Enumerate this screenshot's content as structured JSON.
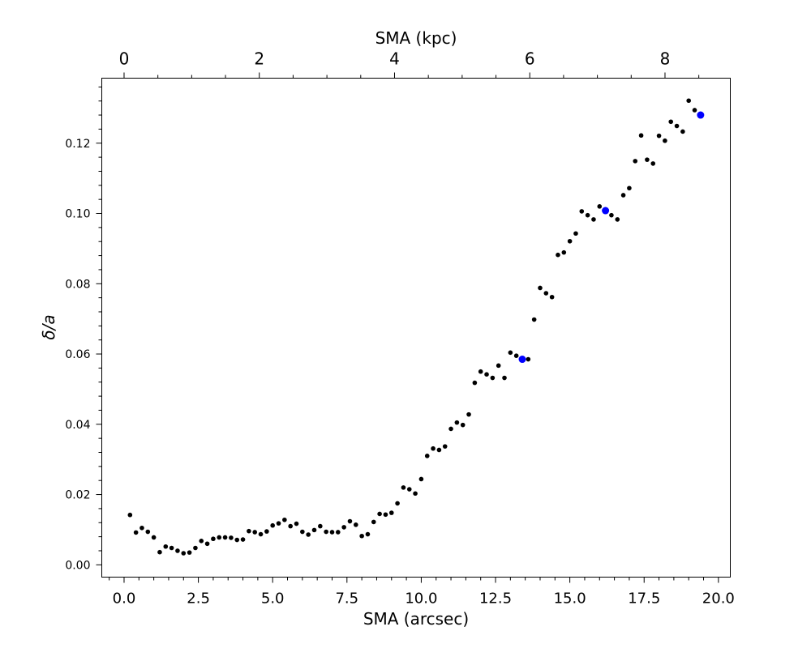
{
  "chart_data": {
    "type": "scatter",
    "title": "",
    "xlabel": "SMA (arcsec)",
    "ylabel": "δ/a",
    "x2label": "SMA (kpc)",
    "xlim": [
      -0.75,
      20.4
    ],
    "ylim": [
      -0.0035,
      0.1385
    ],
    "x2_per_x": 0.4395,
    "xticks": [
      0.0,
      2.5,
      5.0,
      7.5,
      10.0,
      12.5,
      15.0,
      17.5,
      20.0
    ],
    "xtick_labels": [
      "0.0",
      "2.5",
      "5.0",
      "7.5",
      "10.0",
      "12.5",
      "15.0",
      "17.5",
      "20.0"
    ],
    "yticks": [
      0.0,
      0.02,
      0.04,
      0.06,
      0.08,
      0.1,
      0.12
    ],
    "ytick_labels": [
      "0.00",
      "0.02",
      "0.04",
      "0.06",
      "0.08",
      "0.10",
      "0.12"
    ],
    "x2ticks": [
      0,
      2,
      4,
      6,
      8
    ],
    "x2tick_labels": [
      "0",
      "2",
      "4",
      "6",
      "8"
    ],
    "grid": false,
    "colors": {
      "points": "#000000",
      "highlight": "#0000ff",
      "axes": "#000000",
      "background": "#ffffff"
    },
    "series": [
      {
        "color": "#000000",
        "x": [
          0.2,
          0.4,
          0.6,
          0.8,
          1.0,
          1.2,
          1.4,
          1.6,
          1.8,
          2.0,
          2.2,
          2.4,
          2.6,
          2.8,
          3.0,
          3.2,
          3.4,
          3.6,
          3.8,
          4.0,
          4.2,
          4.4,
          4.6,
          4.8,
          5.0,
          5.2,
          5.4,
          5.6,
          5.8,
          6.0,
          6.2,
          6.4,
          6.6,
          6.8,
          7.0,
          7.2,
          7.4,
          7.6,
          7.8,
          8.0,
          8.2,
          8.4,
          8.6,
          8.8,
          9.0,
          9.2,
          9.4,
          9.6,
          9.8,
          10.0,
          10.2,
          10.4,
          10.6,
          10.8,
          11.0,
          11.2,
          11.4,
          11.6,
          11.8,
          12.0,
          12.2,
          12.4,
          12.6,
          12.8,
          13.0,
          13.2,
          13.6,
          13.8,
          14.0,
          14.2,
          14.4,
          14.6,
          14.8,
          15.0,
          15.2,
          15.4,
          15.6,
          15.8,
          16.0,
          16.4,
          16.6,
          16.8,
          17.0,
          17.2,
          17.4,
          17.6,
          17.8,
          18.0,
          18.2,
          18.4,
          18.6,
          18.8,
          19.0,
          19.2
        ],
        "y": [
          0.0142,
          0.0092,
          0.0105,
          0.0094,
          0.0078,
          0.0036,
          0.0052,
          0.0048,
          0.004,
          0.0033,
          0.0035,
          0.0048,
          0.0068,
          0.006,
          0.0074,
          0.0078,
          0.0078,
          0.0077,
          0.0071,
          0.0072,
          0.0096,
          0.0093,
          0.0087,
          0.0095,
          0.0112,
          0.0118,
          0.0128,
          0.011,
          0.0117,
          0.0094,
          0.0086,
          0.0099,
          0.011,
          0.0094,
          0.0093,
          0.0093,
          0.0107,
          0.0124,
          0.0114,
          0.0082,
          0.0087,
          0.0122,
          0.0145,
          0.0143,
          0.0148,
          0.0175,
          0.022,
          0.0215,
          0.0203,
          0.0244,
          0.031,
          0.0331,
          0.0327,
          0.0337,
          0.0387,
          0.0405,
          0.0398,
          0.0428,
          0.0518,
          0.055,
          0.0542,
          0.0532,
          0.0567,
          0.0532,
          0.0604,
          0.0595,
          0.0585,
          0.0698,
          0.0788,
          0.0773,
          0.0762,
          0.0882,
          0.0889,
          0.0921,
          0.0943,
          0.1006,
          0.0995,
          0.0983,
          0.102,
          0.0995,
          0.0983,
          0.1052,
          0.1072,
          0.1149,
          0.1222,
          0.1153,
          0.1142,
          0.1221,
          0.1207,
          0.1261,
          0.1249,
          0.1233,
          0.1321,
          0.1294
        ]
      },
      {
        "color": "#0000ff",
        "x": [
          13.4,
          16.2,
          19.4
        ],
        "y": [
          0.0585,
          0.1008,
          0.128
        ]
      }
    ]
  }
}
